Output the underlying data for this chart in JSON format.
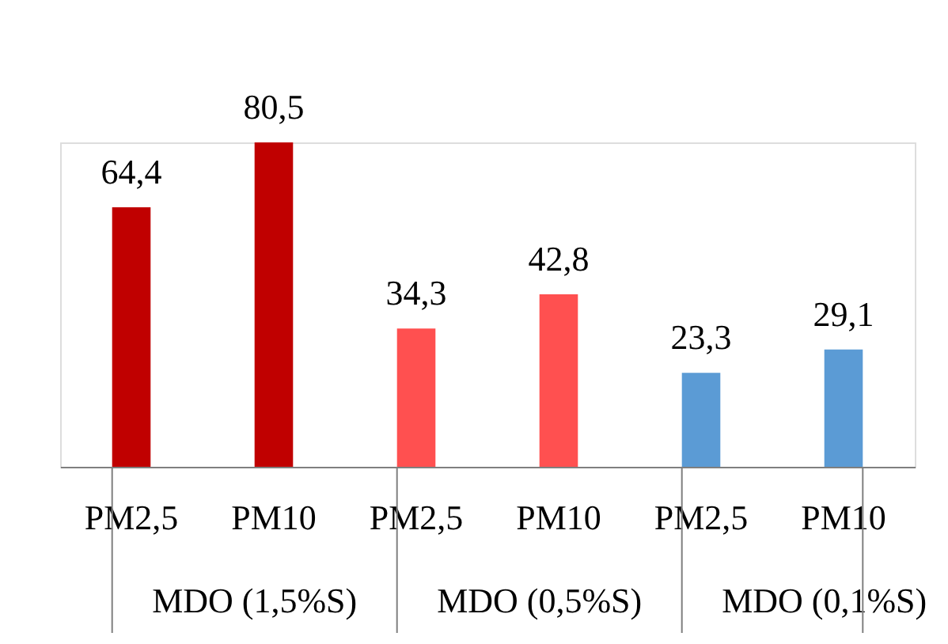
{
  "chart_data": {
    "type": "bar",
    "categories": [
      "PM2,5",
      "PM10",
      "PM2,5",
      "PM10",
      "PM2,5",
      "PM10"
    ],
    "values": [
      64.4,
      80.5,
      34.3,
      42.8,
      23.3,
      29.1
    ],
    "colors": [
      "#c00000",
      "#c00000",
      "#ff5050",
      "#ff5050",
      "#5b9bd5",
      "#5b9bd5"
    ],
    "value_labels": [
      "64,4",
      "80,5",
      "34,3",
      "42,8",
      "23,3",
      "29,1"
    ],
    "annotations": [
      "MDO (1,5%S)",
      "MDO (0,5%S)",
      "MDO (0,1%S)"
    ]
  }
}
